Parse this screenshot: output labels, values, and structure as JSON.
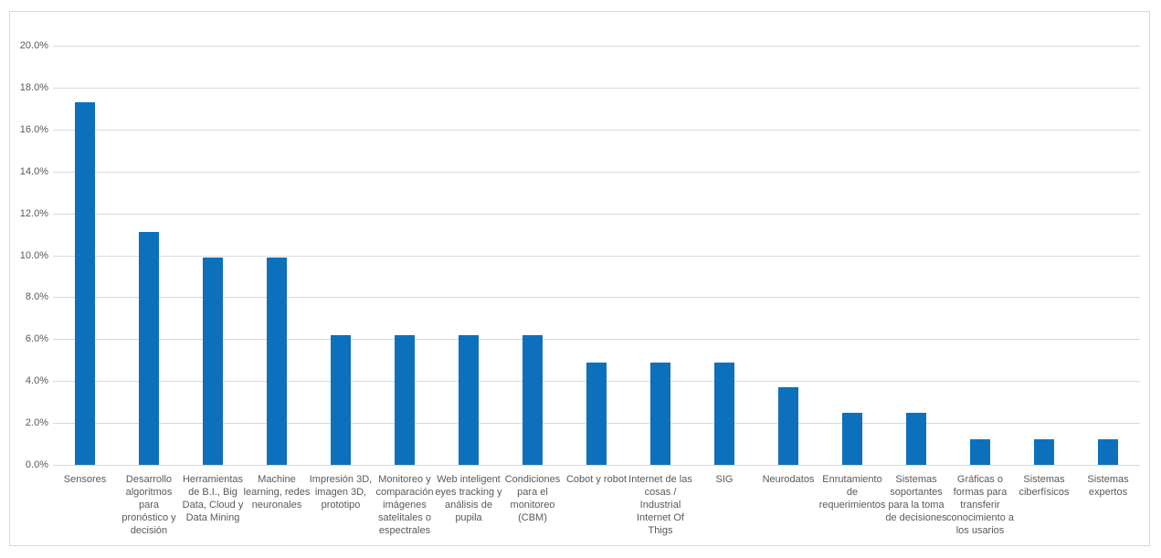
{
  "chart_data": {
    "type": "bar",
    "title": "",
    "legend_position": "none",
    "grid": "horizontal",
    "bar_color": "#0d70bd",
    "gridline_color": "#d9d9d9",
    "axis_text_color": "#595959",
    "value_suffix": "%",
    "y_axis": {
      "min": 0,
      "max": 20,
      "step": 2,
      "tick_labels": [
        "0.0%",
        "2.0%",
        "4.0%",
        "6.0%",
        "8.0%",
        "10.0%",
        "12.0%",
        "14.0%",
        "16.0%",
        "18.0%",
        "20.0%"
      ]
    },
    "categories": [
      {
        "label": "Sensores",
        "lines": [
          "Sensores"
        ]
      },
      {
        "label": "Desarrollo algoritmos para pronóstico y decisión",
        "lines": [
          "Desarrollo",
          "algoritmos",
          "para",
          "pronóstico y",
          "decisión"
        ]
      },
      {
        "label": "Herramientas de B.I., Big Data, Cloud y Data Mining",
        "lines": [
          "Herramientas",
          "de B.I., Big",
          "Data, Cloud y",
          "Data Mining"
        ]
      },
      {
        "label": "Machine learning, redes neuronales",
        "lines": [
          "Machine",
          "learning, redes",
          "neuronales"
        ]
      },
      {
        "label": "Impresión 3D, imagen 3D, prototipo",
        "lines": [
          "Impresión 3D,",
          "imagen 3D,",
          "prototipo"
        ]
      },
      {
        "label": "Monitoreo y comparación imágenes satelitales o espectrales",
        "lines": [
          "Monitoreo y",
          "comparación",
          "imágenes",
          "satelitales o",
          "espectrales"
        ]
      },
      {
        "label": "Web inteligent eyes tracking y análisis de pupila",
        "lines": [
          "Web inteligent",
          "eyes tracking y",
          "análisis de",
          "pupila"
        ]
      },
      {
        "label": "Condiciones para el monitoreo (CBM)",
        "lines": [
          "Condiciones",
          "para el",
          "monitoreo",
          "(CBM)"
        ]
      },
      {
        "label": "Cobot y robot",
        "lines": [
          "Cobot y robot"
        ]
      },
      {
        "label": "Internet de las cosas / Industrial Internet Of Thigs",
        "lines": [
          "Internet de las",
          "cosas /",
          "Industrial",
          "Internet Of",
          "Thigs"
        ]
      },
      {
        "label": "SIG",
        "lines": [
          "SIG"
        ]
      },
      {
        "label": "Neurodatos",
        "lines": [
          "Neurodatos"
        ]
      },
      {
        "label": "Enrutamiento de requerimientos",
        "lines": [
          "Enrutamiento",
          "de",
          "requerimientos"
        ]
      },
      {
        "label": "Sistemas soportantes para la toma de decisiones",
        "lines": [
          "Sistemas",
          "soportantes",
          "para la toma",
          "de decisiones"
        ]
      },
      {
        "label": "Gráficas o formas para transferir conocimiento a los usarios",
        "lines": [
          "Gráficas o",
          "formas para",
          "transferir",
          "conocimiento a",
          "los usarios"
        ]
      },
      {
        "label": "Sistemas ciberfísicos",
        "lines": [
          "Sistemas",
          "ciberfísicos"
        ]
      },
      {
        "label": "Sistemas expertos",
        "lines": [
          "Sistemas",
          "expertos"
        ]
      }
    ],
    "values": [
      17.3,
      11.1,
      9.9,
      9.9,
      6.2,
      6.2,
      6.2,
      6.2,
      4.9,
      4.9,
      4.9,
      3.7,
      2.5,
      2.5,
      1.2,
      1.2,
      1.2
    ]
  }
}
